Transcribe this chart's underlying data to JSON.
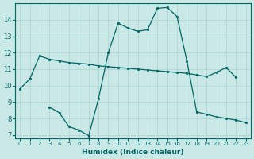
{
  "xlabel": "Humidex (Indice chaleur)",
  "background_color": "#c9e8e6",
  "grid_color": "#aad4d0",
  "line_color": "#006666",
  "xlim": [
    -0.5,
    23.5
  ],
  "ylim": [
    6.8,
    15.0
  ],
  "yticks": [
    7,
    8,
    9,
    10,
    11,
    12,
    13,
    14
  ],
  "xticks": [
    0,
    1,
    2,
    3,
    4,
    5,
    6,
    7,
    8,
    9,
    10,
    11,
    12,
    13,
    14,
    15,
    16,
    17,
    18,
    19,
    20,
    21,
    22,
    23
  ],
  "line1_x": [
    0,
    1,
    2,
    3,
    4,
    5,
    6,
    7,
    8,
    9,
    10,
    11,
    12,
    13,
    14,
    15,
    16,
    17,
    18,
    19,
    20,
    21,
    22
  ],
  "line1_y": [
    9.8,
    10.4,
    11.8,
    11.6,
    11.5,
    11.4,
    11.35,
    11.3,
    11.2,
    11.15,
    11.1,
    11.05,
    11.0,
    10.95,
    10.9,
    10.85,
    10.8,
    10.75,
    10.65,
    10.55,
    10.8,
    11.1,
    10.5
  ],
  "line2_x": [
    3,
    4,
    5,
    6,
    7,
    8,
    9,
    10,
    11,
    12,
    13,
    14,
    15,
    16,
    17,
    18,
    19,
    20,
    21,
    22,
    23
  ],
  "line2_y": [
    8.7,
    8.35,
    7.5,
    7.3,
    6.95,
    9.2,
    12.0,
    13.8,
    13.5,
    13.3,
    13.4,
    14.7,
    14.75,
    14.2,
    11.5,
    8.4,
    8.25,
    8.1,
    8.0,
    7.9,
    7.75
  ]
}
